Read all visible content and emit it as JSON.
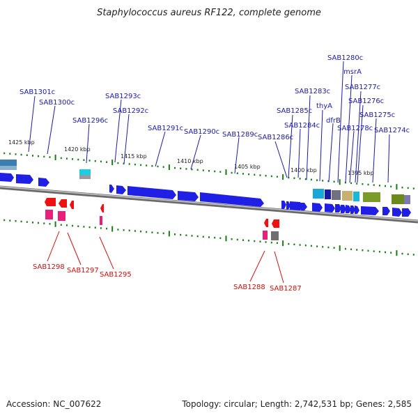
{
  "title": "Staphylococcus aureus RF122, complete genome",
  "footer": {
    "accession": "Accession: NC_007622",
    "summary": "Topology: circular; Length: 2,742,531 bp; Genes: 2,585"
  },
  "colors": {
    "forward_gene": "#1f1fe6",
    "forward_label": "#1a1aa8",
    "reverse_gene": "#ee1111",
    "reverse_label": "#cc1111",
    "reverse_feature": "#e8207a",
    "backbone": "#808080",
    "tick": "#1a7a1a"
  },
  "scale_labels": [
    "1425 kbp",
    "1420 kbp",
    "1415 kbp",
    "1410 kbp",
    "1405 kbp",
    "1400 kbp",
    "1395 kbp"
  ],
  "forward_labels": [
    "SAB1301c",
    "SAB1300c",
    "SAB1296c",
    "SAB1293c",
    "SAB1292c",
    "SAB1291c",
    "SAB1290c",
    "SAB1289c",
    "SAB1286c",
    "SAB1285c",
    "SAB1284c",
    "SAB1283c",
    "thyA",
    "dfrB",
    "SAB1280c",
    "msrA",
    "SAB1277c",
    "SAB1276c",
    "SAB1278c",
    "SAB1275c",
    "SAB1274c"
  ],
  "reverse_labels": [
    "SAB1298",
    "SAB1297",
    "SAB1295",
    "SAB1288",
    "SAB1287"
  ]
}
